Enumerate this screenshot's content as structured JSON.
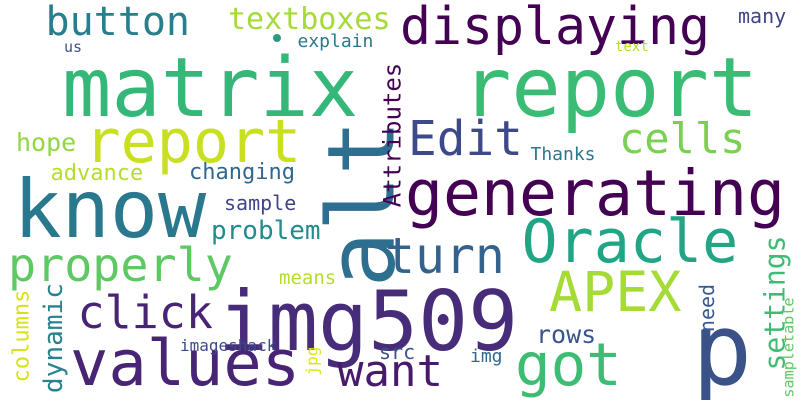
{
  "words": [
    {
      "text": "p",
      "color": "#3b5288"
    },
    {
      "text": "matrix",
      "color": "#35b779"
    },
    {
      "text": "report",
      "color": "#3bbc75"
    },
    {
      "text": "img509",
      "color": "#472c7a"
    },
    {
      "text": "alt",
      "color": "#2e6e8e"
    },
    {
      "text": "know",
      "color": "#2a788e"
    },
    {
      "text": "values",
      "color": "#482475"
    },
    {
      "text": "report",
      "color": "#c8e020"
    },
    {
      "text": "generating",
      "color": "#440154"
    },
    {
      "text": "displaying",
      "color": "#440154"
    },
    {
      "text": "APEX",
      "color": "#a5db36"
    },
    {
      "text": "Oracle",
      "color": "#21a585"
    },
    {
      "text": "got",
      "color": "#3dbc74"
    },
    {
      "text": "properly",
      "color": "#5ec962"
    },
    {
      "text": "button",
      "color": "#277f8e"
    },
    {
      "text": "turn",
      "color": "#33638d"
    },
    {
      "text": "want",
      "color": "#481a6c"
    },
    {
      "text": "click",
      "color": "#482475"
    },
    {
      "text": "Edit",
      "color": "#3e4989"
    },
    {
      "text": "cells",
      "color": "#7ad151"
    },
    {
      "text": "textboxes",
      "color": "#a5db36"
    },
    {
      "text": "many",
      "color": "#414487"
    },
    {
      "text": "explain",
      "color": "#2a788e"
    },
    {
      "text": "us",
      "color": "#3b528b"
    },
    {
      "text": "text",
      "color": "#b5de2b"
    },
    {
      "text": "hope",
      "color": "#90d743"
    },
    {
      "text": "advance",
      "color": "#b5de2b"
    },
    {
      "text": "changing",
      "color": "#31688e"
    },
    {
      "text": "sample",
      "color": "#414487"
    },
    {
      "text": "problem",
      "color": "#238a8d"
    },
    {
      "text": "Thanks",
      "color": "#2a788e"
    },
    {
      "text": "Attributes",
      "color": "#440154"
    },
    {
      "text": "means",
      "color": "#b5de2b"
    },
    {
      "text": "columns",
      "color": "#d8e219"
    },
    {
      "text": "dynamic",
      "color": "#26828e"
    },
    {
      "text": "imageshack",
      "color": "#3e4989"
    },
    {
      "text": "jpg",
      "color": "#dde318"
    },
    {
      "text": "src",
      "color": "#3b528b"
    },
    {
      "text": "img",
      "color": "#31688e"
    },
    {
      "text": "rows",
      "color": "#39568c"
    },
    {
      "text": "need",
      "color": "#38598c"
    },
    {
      "text": "settings",
      "color": "#3fbc73"
    },
    {
      "text": "sampletable",
      "color": "#5ec962"
    }
  ],
  "dot_color": "#2a9b82"
}
